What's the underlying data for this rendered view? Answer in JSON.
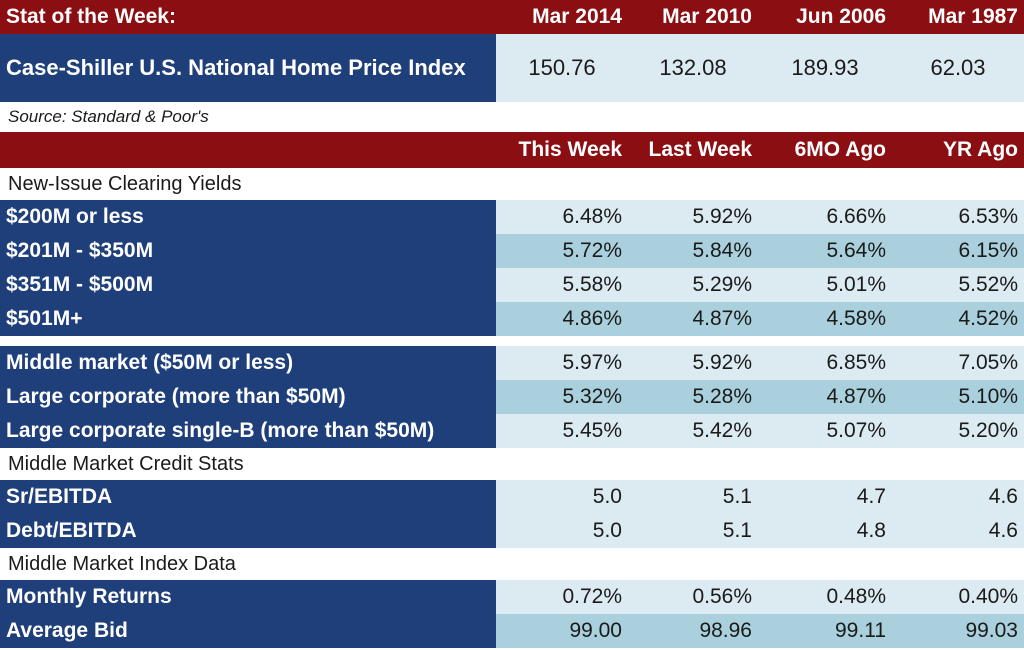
{
  "stat": {
    "title": "Stat of the Week:",
    "headers": [
      "Mar 2014",
      "Mar 2010",
      "Jun 2006",
      "Mar 1987"
    ],
    "row_label": "Case-Shiller U.S. National Home Price Index",
    "values": [
      "150.76",
      "132.08",
      "189.93",
      "62.03"
    ],
    "source": "Source: Standard & Poor's"
  },
  "columns": [
    "This Week",
    "Last Week",
    "6MO Ago",
    "YR Ago"
  ],
  "sections": {
    "clearing_title": "New-Issue Clearing Yields",
    "credit_title": "Middle Market Credit Stats",
    "index_title": "Middle Market Index Data"
  },
  "clearing": [
    {
      "label": "$200M or less",
      "values": [
        "6.48%",
        "5.92%",
        "6.66%",
        "6.53%"
      ]
    },
    {
      "label": "$201M - $350M",
      "values": [
        "5.72%",
        "5.84%",
        "5.64%",
        "6.15%"
      ]
    },
    {
      "label": "$351M - $500M",
      "values": [
        "5.58%",
        "5.29%",
        "5.01%",
        "5.52%"
      ]
    },
    {
      "label": "$501M+",
      "values": [
        "4.86%",
        "4.87%",
        "4.58%",
        "4.52%"
      ]
    }
  ],
  "market": [
    {
      "label": "Middle market ($50M or less)",
      "values": [
        "5.97%",
        "5.92%",
        "6.85%",
        "7.05%"
      ]
    },
    {
      "label": "Large corporate (more than $50M)",
      "values": [
        "5.32%",
        "5.28%",
        "4.87%",
        "5.10%"
      ]
    },
    {
      "label": "Large corporate single-B (more than $50M)",
      "values": [
        "5.45%",
        "5.42%",
        "5.07%",
        "5.20%"
      ]
    }
  ],
  "credit": [
    {
      "label": "Sr/EBITDA",
      "values": [
        "5.0",
        "5.1",
        "4.7",
        "4.6"
      ]
    },
    {
      "label": "Debt/EBITDA",
      "values": [
        "5.0",
        "5.1",
        "4.8",
        "4.6"
      ]
    }
  ],
  "index": [
    {
      "label": "Monthly Returns",
      "values": [
        "0.72%",
        "0.56%",
        "0.48%",
        "0.40%"
      ]
    },
    {
      "label": "Average Bid",
      "values": [
        "99.00",
        "98.96",
        "99.11",
        "99.03"
      ]
    }
  ]
}
